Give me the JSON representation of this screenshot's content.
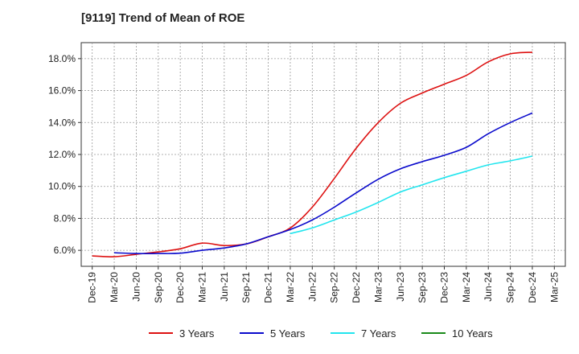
{
  "chart_data": {
    "type": "line",
    "title": "[9119]  Trend of Mean of ROE",
    "xlabel": "",
    "ylabel": "",
    "ylim": [
      5.0,
      19.0
    ],
    "x_ticks": [
      "Dec-19",
      "Mar-20",
      "Jun-20",
      "Sep-20",
      "Dec-20",
      "Mar-21",
      "Jun-21",
      "Sep-21",
      "Dec-21",
      "Mar-22",
      "Jun-22",
      "Sep-22",
      "Dec-22",
      "Mar-23",
      "Jun-23",
      "Sep-23",
      "Dec-23",
      "Mar-24",
      "Jun-24",
      "Sep-24",
      "Dec-24",
      "Mar-25"
    ],
    "y_ticks": [
      "6.0%",
      "8.0%",
      "10.0%",
      "12.0%",
      "14.0%",
      "16.0%",
      "18.0%"
    ],
    "y_tick_values": [
      6,
      8,
      10,
      12,
      14,
      16,
      18
    ],
    "grid": true,
    "legend_position": "bottom",
    "series": [
      {
        "name": "3 Years",
        "color": "#dd1111",
        "x": [
          "Dec-19",
          "Mar-20",
          "Jun-20",
          "Sep-20",
          "Dec-20",
          "Mar-21",
          "Jun-21",
          "Sep-21",
          "Dec-21",
          "Mar-22",
          "Jun-22",
          "Sep-22",
          "Dec-22",
          "Mar-23",
          "Jun-23",
          "Sep-23",
          "Dec-23",
          "Mar-24",
          "Jun-24",
          "Sep-24",
          "Dec-24"
        ],
        "values": [
          5.65,
          5.6,
          5.75,
          5.9,
          6.1,
          6.45,
          6.3,
          6.4,
          6.85,
          7.4,
          8.7,
          10.5,
          12.4,
          14.0,
          15.2,
          15.85,
          16.4,
          16.95,
          17.8,
          18.3,
          18.4
        ]
      },
      {
        "name": "5 Years",
        "color": "#0a0acc",
        "x": [
          "Mar-20",
          "Jun-20",
          "Sep-20",
          "Dec-20",
          "Mar-21",
          "Jun-21",
          "Sep-21",
          "Dec-21",
          "Mar-22",
          "Jun-22",
          "Sep-22",
          "Dec-22",
          "Mar-23",
          "Jun-23",
          "Sep-23",
          "Dec-23",
          "Mar-24",
          "Jun-24",
          "Sep-24",
          "Dec-24"
        ],
        "values": [
          5.85,
          5.8,
          5.8,
          5.82,
          6.0,
          6.15,
          6.4,
          6.85,
          7.3,
          7.9,
          8.7,
          9.6,
          10.45,
          11.1,
          11.55,
          11.95,
          12.45,
          13.3,
          14.0,
          14.6
        ]
      },
      {
        "name": "7 Years",
        "color": "#22e5ee",
        "x": [
          "Mar-22",
          "Jun-22",
          "Sep-22",
          "Dec-22",
          "Mar-23",
          "Jun-23",
          "Sep-23",
          "Dec-23",
          "Mar-24",
          "Jun-24",
          "Sep-24",
          "Dec-24"
        ],
        "values": [
          7.05,
          7.4,
          7.9,
          8.4,
          9.0,
          9.65,
          10.1,
          10.55,
          10.95,
          11.35,
          11.6,
          11.9
        ]
      },
      {
        "name": "10 Years",
        "color": "#1a8a1a",
        "x": [],
        "values": []
      }
    ]
  }
}
